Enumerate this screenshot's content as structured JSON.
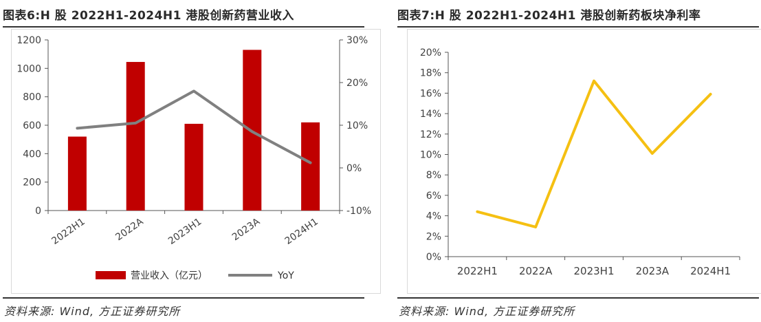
{
  "figure_left": {
    "title": "图表6:H 股 2022H1-2024H1 港股创新药营业收入",
    "source": "资料来源: Wind, 方正证券研究所"
  },
  "figure_right": {
    "title": "图表7:H 股 2022H1-2024H1 港股创新药板块净利率",
    "source": "资料来源: Wind, 方正证券研究所"
  },
  "chart_data": [
    {
      "type": "bar",
      "title": "H 股 2022H1-2024H1 港股创新药营业收入",
      "categories": [
        "2022H1",
        "2022A",
        "2023H1",
        "2023A",
        "2024H1"
      ],
      "series": [
        {
          "name": "营业收入（亿元）",
          "type": "bar",
          "axis": "left",
          "color": "#c00000",
          "values": [
            520,
            1045,
            610,
            1130,
            620
          ]
        },
        {
          "name": "YoY",
          "type": "line",
          "axis": "right",
          "color": "#808080",
          "values": [
            9.3,
            10.5,
            18.0,
            8.5,
            1.2
          ]
        }
      ],
      "ylim_left": [
        0,
        1200
      ],
      "yticks_left": [
        "0",
        "200",
        "400",
        "600",
        "800",
        "1000",
        "1200"
      ],
      "ylim_right": [
        -10,
        30
      ],
      "yticks_right": [
        "-10%",
        "0%",
        "10%",
        "20%",
        "30%"
      ],
      "legend": [
        "营业收入（亿元）",
        "YoY"
      ],
      "legend_position": "bottom"
    },
    {
      "type": "line",
      "title": "H 股 2022H1-2024H1 港股创新药板块净利率",
      "categories": [
        "2022H1",
        "2022A",
        "2023H1",
        "2023A",
        "2024H1"
      ],
      "series": [
        {
          "name": "净利率",
          "color": "#f5c012",
          "values": [
            4.4,
            2.9,
            17.2,
            10.1,
            15.9
          ]
        }
      ],
      "ylim": [
        0,
        20
      ],
      "yticks": [
        "0%",
        "2%",
        "4%",
        "6%",
        "8%",
        "10%",
        "12%",
        "14%",
        "16%",
        "18%",
        "20%"
      ]
    }
  ]
}
